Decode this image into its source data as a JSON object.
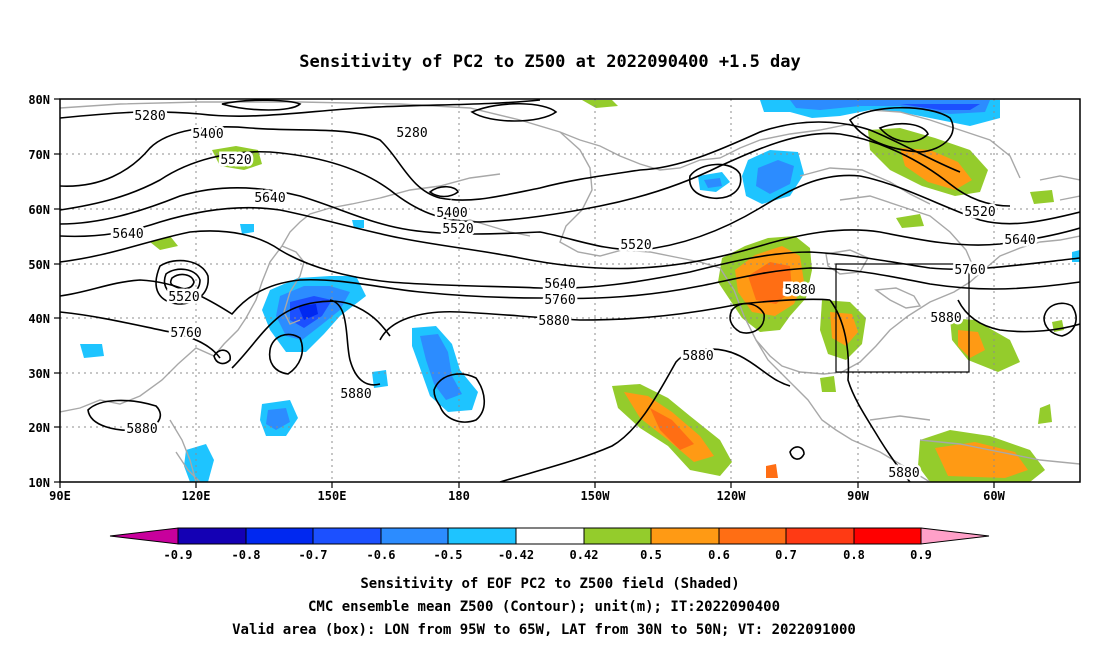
{
  "title": "Sensitivity of PC2 to Z500 at 2022090400 +1.5 day",
  "lat_labels": [
    "80N",
    "70N",
    "60N",
    "50N",
    "40N",
    "30N",
    "20N",
    "10N"
  ],
  "lon_labels": [
    "90E",
    "120E",
    "150E",
    "180",
    "150W",
    "120W",
    "90W",
    "60W"
  ],
  "map": {
    "lon_range": "90E to 50W",
    "lat_range": [
      10,
      80
    ],
    "gridlines": "dotted gray",
    "coastlines": "gray",
    "contour_color": "#000000"
  },
  "contour_labels": [
    "5280",
    "5280",
    "5400",
    "5400",
    "5520",
    "5520",
    "5520",
    "5520",
    "5520",
    "5640",
    "5640",
    "5640",
    "5640",
    "5760",
    "5760",
    "5760",
    "5880",
    "5880",
    "5880",
    "5880",
    "5880",
    "5880",
    "5880"
  ],
  "valid_box": {
    "lon_from": "95W",
    "lon_to": "65W",
    "lat_from": "30N",
    "lat_to": "50N"
  },
  "colorbar": {
    "labels": [
      "-0.9",
      "-0.8",
      "-0.7",
      "-0.6",
      "-0.5",
      "-0.42",
      "0.42",
      "0.5",
      "0.6",
      "0.7",
      "0.8",
      "0.9"
    ],
    "colors": [
      "#c8009c",
      "#1400b4",
      "#0028f0",
      "#1c50ff",
      "#2c8cff",
      "#1ec4ff",
      "#ffffff",
      "#94cc2c",
      "#ff9a14",
      "#ff6e14",
      "#ff3a14",
      "#ff0000",
      "#ffa0c8"
    ]
  },
  "caption": [
    "Sensitivity of EOF PC2 to Z500 field (Shaded)",
    "CMC ensemble mean Z500 (Contour); unit(m); IT:2022090400",
    "Valid area (box): LON from 95W to 65W, LAT from 30N to 50N; VT: 2022091000"
  ]
}
